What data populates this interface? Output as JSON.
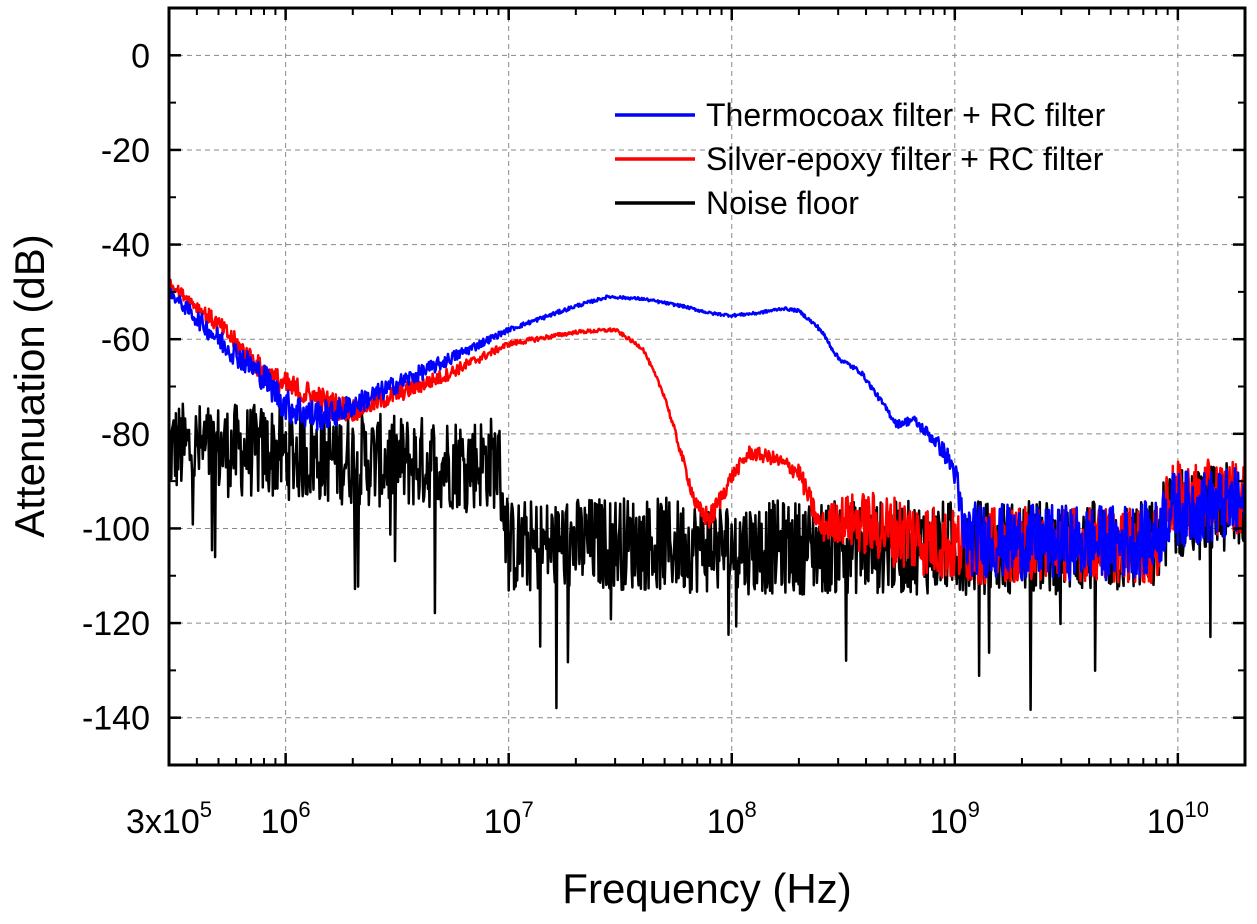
{
  "chart_data": {
    "type": "line",
    "xlabel": "Frequency (Hz)",
    "ylabel": "Attenuation (dB)",
    "x_scale": "log",
    "xlim": [
      300000,
      20000000000
    ],
    "ylim": [
      -150,
      10
    ],
    "grid": true,
    "legend_position": "top-right",
    "x_ticks": [
      {
        "value": 300000,
        "mantissa": "3x10",
        "exp": "5"
      },
      {
        "value": 1000000,
        "mantissa": "10",
        "exp": "6"
      },
      {
        "value": 10000000,
        "mantissa": "10",
        "exp": "7"
      },
      {
        "value": 100000000,
        "mantissa": "10",
        "exp": "8"
      },
      {
        "value": 1000000000,
        "mantissa": "10",
        "exp": "9"
      },
      {
        "value": 10000000000,
        "mantissa": "10",
        "exp": "10"
      }
    ],
    "y_ticks": [
      0,
      -20,
      -40,
      -60,
      -80,
      -100,
      -120,
      -140
    ],
    "series": [
      {
        "name": "Thermocoax filter + RC filter",
        "color": "#0000ff",
        "x": [
          300000,
          500000,
          800000,
          1000000,
          1300000,
          1600000,
          2000000,
          3000000,
          5000000,
          10000000,
          20000000,
          28000000,
          40000000,
          60000000,
          80000000,
          100000000,
          130000000,
          170000000,
          200000000,
          250000000,
          300000000,
          380000000,
          450000000,
          550000000,
          650000000,
          800000000,
          900000000,
          1000000000,
          1100000000,
          2000000000,
          5000000000,
          8000000000,
          9000000000,
          20000000000
        ],
        "y": [
          -50,
          -60,
          -68,
          -74,
          -76,
          -76,
          -74,
          -70,
          -65,
          -58,
          -53,
          -51,
          -51.5,
          -53,
          -54.5,
          -55,
          -54.5,
          -53.5,
          -54,
          -58,
          -64,
          -67,
          -72,
          -78,
          -77,
          -81,
          -84,
          -88,
          -102,
          -103,
          -103,
          -102,
          -96,
          -95
        ],
        "noise": [
          1,
          2.5,
          3,
          3.5,
          3.5,
          3,
          2.5,
          2,
          1.5,
          0.5,
          0.4,
          0.3,
          0.3,
          0.3,
          0.3,
          0.3,
          0.3,
          0.3,
          0.3,
          0.5,
          0.5,
          0.5,
          0.6,
          0.8,
          1,
          1.5,
          2,
          3,
          8,
          8,
          8,
          8,
          8,
          8
        ]
      },
      {
        "name": "Silver-epoxy filter + RC filter",
        "color": "#ff0000",
        "x": [
          300000,
          500000,
          800000,
          1000000,
          1300000,
          1600000,
          2000000,
          3000000,
          5000000,
          10000000,
          20000000,
          30000000,
          40000000,
          50000000,
          60000000,
          70000000,
          80000000,
          100000000,
          120000000,
          150000000,
          200000000,
          250000000,
          300000000,
          400000000,
          600000000,
          1000000000,
          3000000000,
          8000000000,
          9000000000,
          20000000000
        ],
        "y": [
          -48,
          -57,
          -67,
          -70,
          -72,
          -74,
          -75,
          -72,
          -68,
          -61,
          -58.5,
          -58,
          -62,
          -72,
          -85,
          -96,
          -98,
          -89,
          -84,
          -85,
          -88,
          -100,
          -98,
          -99,
          -101,
          -104,
          -103,
          -104,
          -94,
          -93
        ],
        "noise": [
          0.8,
          2,
          2.5,
          3,
          3,
          3,
          2.5,
          2,
          1.5,
          0.6,
          0.4,
          0.4,
          0.4,
          0.6,
          1,
          2,
          2.5,
          1.5,
          1.5,
          1.5,
          2,
          3,
          5,
          7,
          8,
          8,
          8,
          8,
          8,
          8
        ]
      },
      {
        "name": "Noise floor",
        "color": "#000000",
        "x": [
          300000,
          1000000,
          3000000,
          9000000,
          10000000,
          30000000,
          100000000,
          300000000,
          1000000000,
          3000000000,
          8000000000,
          9000000000,
          20000000000
        ],
        "y": [
          -83,
          -84,
          -86,
          -86,
          -104,
          -103,
          -104,
          -104,
          -104,
          -104,
          -104,
          -97,
          -96
        ],
        "noise": [
          10,
          10,
          10,
          10,
          10,
          10,
          10,
          10,
          10,
          10,
          10,
          10,
          10
        ]
      }
    ]
  }
}
